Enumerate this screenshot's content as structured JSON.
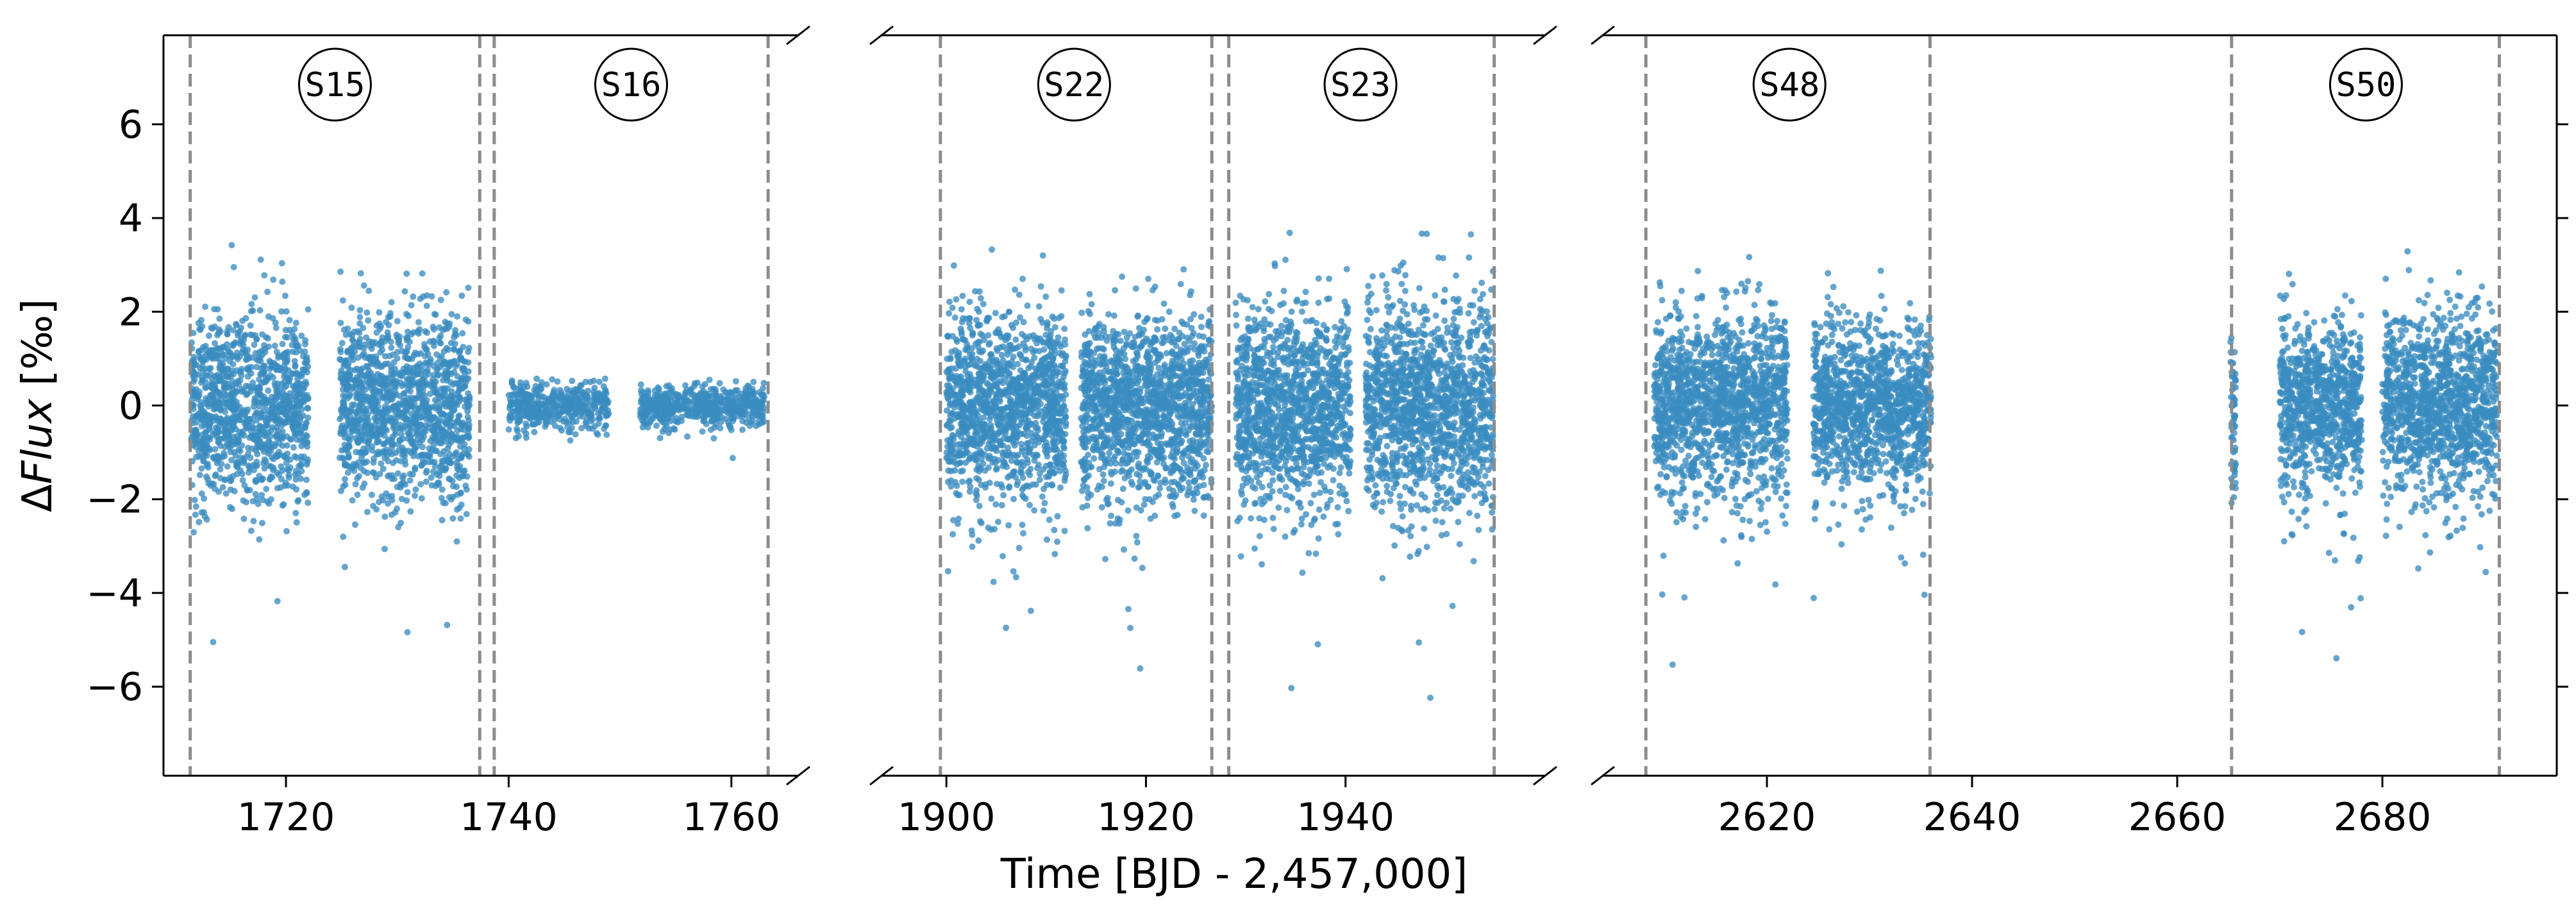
{
  "chart_data": {
    "type": "scatter",
    "xlabel": "Time [BJD - 2,457,000]",
    "ylabel_parts": [
      "Δ",
      "Flux",
      " [‰]"
    ],
    "ylim": [
      -7.9,
      7.9
    ],
    "grid": false,
    "point_color": "#3a8cc0",
    "sector_line_color": "#8c8c8c",
    "y_ticks": [
      -6,
      -4,
      -2,
      0,
      2,
      4,
      6
    ],
    "y_tick_labels": [
      "−6",
      "−4",
      "−2",
      "0",
      "2",
      "4",
      "6"
    ],
    "panels": [
      {
        "xlim": [
          1709,
          1766
        ],
        "x_ticks": [
          1720,
          1740,
          1760
        ],
        "x_tick_labels": [
          "1720",
          "1740",
          "1760"
        ],
        "sector_boundaries": [
          1711.4,
          1737.4,
          1738.7,
          1763.3
        ],
        "sectors": [
          {
            "label": "S15",
            "x": 1724.4
          },
          {
            "label": "S16",
            "x": 1751.0
          }
        ],
        "data_segments": [
          {
            "x_start": 1711.5,
            "x_end": 1722.0,
            "mean": 0.0,
            "scatter": 1.4
          },
          {
            "x_start": 1724.8,
            "x_end": 1736.5,
            "mean": 0.0,
            "scatter": 1.4
          },
          {
            "x_start": 1740.0,
            "x_end": 1749.0,
            "mean": 0.0,
            "scatter": 0.35
          },
          {
            "x_start": 1751.8,
            "x_end": 1763.0,
            "mean": 0.0,
            "scatter": 0.3
          }
        ]
      },
      {
        "xlim": [
          1893.5,
          1960
        ],
        "x_ticks": [
          1900,
          1920,
          1940
        ],
        "x_tick_labels": [
          "1900",
          "1920",
          "1940"
        ],
        "sector_boundaries": [
          1899.4,
          1926.6,
          1928.3,
          1954.9
        ],
        "sectors": [
          {
            "label": "S22",
            "x": 1912.8
          },
          {
            "label": "S23",
            "x": 1941.5
          }
        ],
        "data_segments": [
          {
            "x_start": 1900.0,
            "x_end": 1912.0,
            "mean": 0.0,
            "scatter": 1.4
          },
          {
            "x_start": 1913.5,
            "x_end": 1926.6,
            "mean": 0.0,
            "scatter": 1.4
          },
          {
            "x_start": 1929.0,
            "x_end": 1940.5,
            "mean": 0.0,
            "scatter": 1.5
          },
          {
            "x_start": 1942.0,
            "x_end": 1954.8,
            "mean": 0.0,
            "scatter": 1.6
          }
        ]
      },
      {
        "xlim": [
          2604,
          2697
        ],
        "x_ticks": [
          2620,
          2640,
          2660,
          2680
        ],
        "x_tick_labels": [
          "2620",
          "2640",
          "2660",
          "2680"
        ],
        "sector_boundaries": [
          2608.2,
          2635.9,
          2665.3,
          2691.4
        ],
        "sectors": [
          {
            "label": "S48",
            "x": 2622.2
          },
          {
            "label": "S50",
            "x": 2678.4
          }
        ],
        "data_segments": [
          {
            "x_start": 2609.0,
            "x_end": 2622.0,
            "mean": 0.0,
            "scatter": 1.4
          },
          {
            "x_start": 2624.5,
            "x_end": 2636.0,
            "mean": 0.0,
            "scatter": 1.3
          },
          {
            "x_start": 2665.2,
            "x_end": 2665.7,
            "mean": 0.0,
            "scatter": 1.4
          },
          {
            "x_start": 2670.0,
            "x_end": 2678.0,
            "mean": 0.0,
            "scatter": 1.3
          },
          {
            "x_start": 2680.0,
            "x_end": 2691.2,
            "mean": 0.0,
            "scatter": 1.4
          }
        ]
      }
    ]
  }
}
